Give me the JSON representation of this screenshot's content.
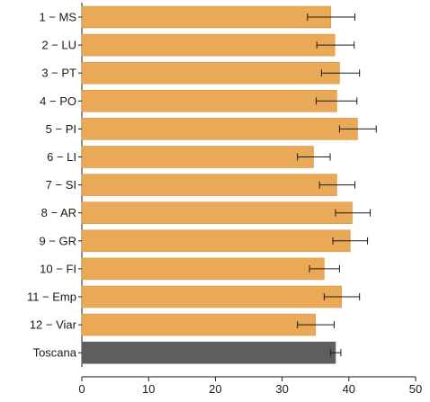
{
  "chart_data": {
    "type": "bar",
    "orientation": "horizontal",
    "categories": [
      "1 − MS",
      "2 − LU",
      "3 − PT",
      "4 − PO",
      "5 − PI",
      "6 − LI",
      "7 − SI",
      "8 − AR",
      "9 − GR",
      "10 − FI",
      "11 − Emp",
      "12 − Viar",
      "Toscana"
    ],
    "values": [
      37.3,
      37.9,
      38.6,
      38.2,
      41.3,
      34.7,
      38.2,
      40.5,
      40.2,
      36.3,
      38.9,
      35.0,
      38.0
    ],
    "error_low": [
      33.8,
      35.2,
      35.9,
      35.1,
      38.6,
      32.3,
      35.6,
      38.0,
      37.6,
      34.1,
      36.3,
      32.3,
      37.3
    ],
    "error_high": [
      40.9,
      40.8,
      41.6,
      41.2,
      44.1,
      37.2,
      40.9,
      43.2,
      42.8,
      38.6,
      41.6,
      37.8,
      38.8
    ],
    "xlim": [
      0,
      50
    ],
    "xticks": [
      "0",
      "10",
      "20",
      "30",
      "40",
      "50"
    ],
    "title": "",
    "xlabel": "",
    "ylabel": "",
    "grid": false,
    "colors": {
      "bar": "#E9A956",
      "bar_stroke": "#D8973F",
      "highlight_bar": "#5E5E60",
      "error_bar": "#1a1a1a",
      "axis": "#1a1a1a"
    },
    "highlight_category": "Toscana"
  }
}
